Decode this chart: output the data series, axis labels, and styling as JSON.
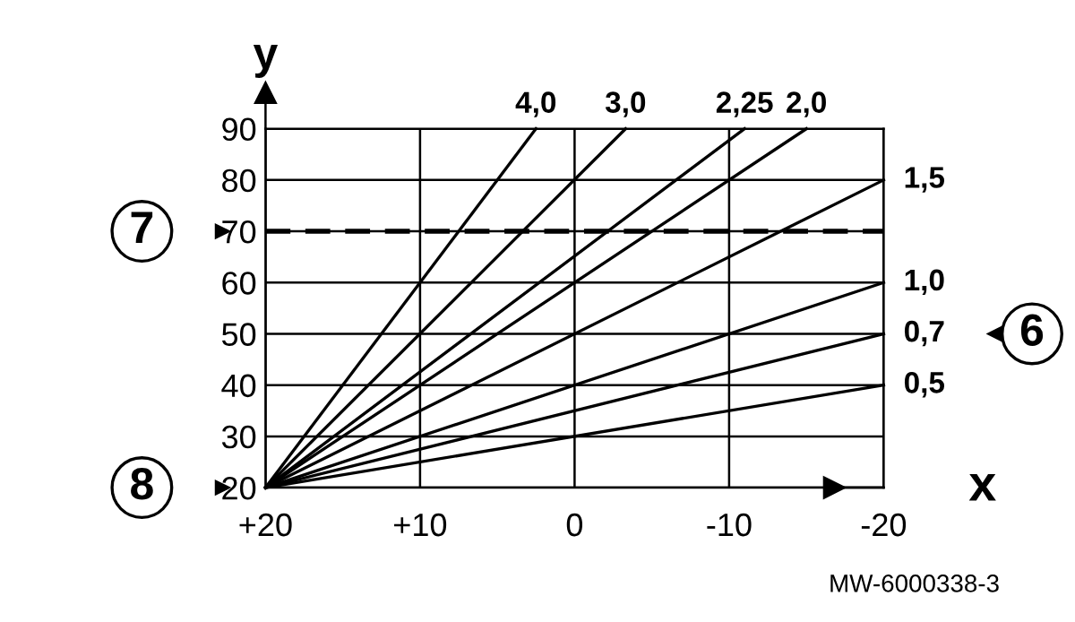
{
  "chart_data": {
    "type": "line",
    "xlabel": "x",
    "ylabel": "y",
    "xlim": [
      20,
      -20
    ],
    "ylim": [
      20,
      90
    ],
    "xticks": [
      {
        "value": 20,
        "label": "+20"
      },
      {
        "value": 10,
        "label": "+10"
      },
      0,
      {
        "value": -10,
        "label": "-10"
      },
      {
        "value": -20,
        "label": "-20"
      }
    ],
    "yticks": [
      20,
      30,
      40,
      50,
      60,
      70,
      80,
      90
    ],
    "grid": true,
    "marker": "none",
    "line_style": "solid",
    "series": [
      {
        "name": "4,0",
        "color": "#000000",
        "x": [
          20,
          2.5
        ],
        "values": [
          20,
          90
        ]
      },
      {
        "name": "3,0",
        "color": "#000000",
        "x": [
          20,
          -3.3
        ],
        "values": [
          20,
          90
        ]
      },
      {
        "name": "2,25",
        "color": "#000000",
        "x": [
          20,
          -11
        ],
        "values": [
          20,
          90
        ]
      },
      {
        "name": "2,0",
        "color": "#000000",
        "x": [
          20,
          -15
        ],
        "values": [
          20,
          90
        ]
      },
      {
        "name": "1,5",
        "color": "#000000",
        "x": [
          20,
          -20
        ],
        "values": [
          20,
          80
        ]
      },
      {
        "name": "1,0",
        "color": "#000000",
        "x": [
          20,
          -20
        ],
        "values": [
          20,
          60
        ]
      },
      {
        "name": "0,7",
        "color": "#000000",
        "x": [
          20,
          -20
        ],
        "values": [
          20,
          50
        ]
      },
      {
        "name": "0,5",
        "color": "#000000",
        "x": [
          20,
          -20
        ],
        "values": [
          20,
          40
        ]
      }
    ],
    "ref_lines": [
      {
        "axis": "y",
        "value": 70,
        "color": "#000000",
        "line_style": "dashed"
      }
    ],
    "annotations": [
      "7",
      "8",
      "6",
      "MW-6000338-3"
    ]
  }
}
